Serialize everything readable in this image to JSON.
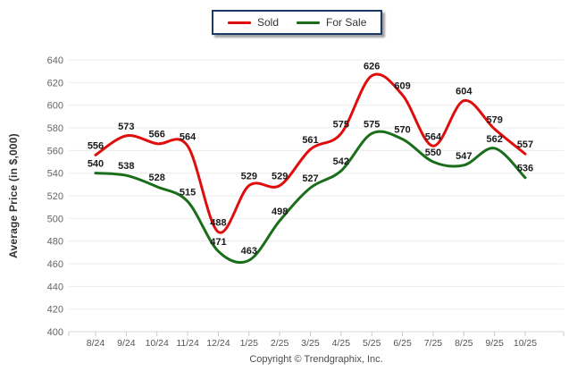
{
  "chart_data": {
    "type": "line",
    "title": "",
    "categories": [
      "8/24",
      "9/24",
      "10/24",
      "11/24",
      "12/24",
      "1/25",
      "2/25",
      "3/25",
      "4/25",
      "5/25",
      "6/25",
      "7/25",
      "8/25",
      "9/25",
      "10/25"
    ],
    "series": [
      {
        "name": "Sold",
        "color": "#e00d0d",
        "values": [
          556,
          573,
          566,
          564,
          488,
          529,
          529,
          561,
          575,
          626,
          609,
          564,
          604,
          579,
          557
        ]
      },
      {
        "name": "For Sale",
        "color": "#1a6e1a",
        "values": [
          540,
          538,
          528,
          515,
          471,
          463,
          498,
          527,
          542,
          575,
          570,
          550,
          547,
          562,
          536
        ]
      }
    ],
    "xlabel": "",
    "ylabel": "Average Price (in $,000)",
    "ylim": [
      400,
      640
    ],
    "ytick_step": 20,
    "grid": true,
    "legend_position": "top-center",
    "show_data_labels": true
  },
  "footer": {
    "copyright": "Copyright © Trendgraphix, Inc."
  },
  "colors": {
    "sold_line": "#e00d0d",
    "for_sale_line": "#1a6e1a",
    "grid_line": "#ececec",
    "axis_line": "#d7d7d7",
    "tick_mark": "#c8c8c8",
    "tick_text": "#666666",
    "data_label_text": "#1a1a1a",
    "axis_title_text": "#333333",
    "legend_border": "#1b3a68",
    "background": "#ffffff"
  }
}
